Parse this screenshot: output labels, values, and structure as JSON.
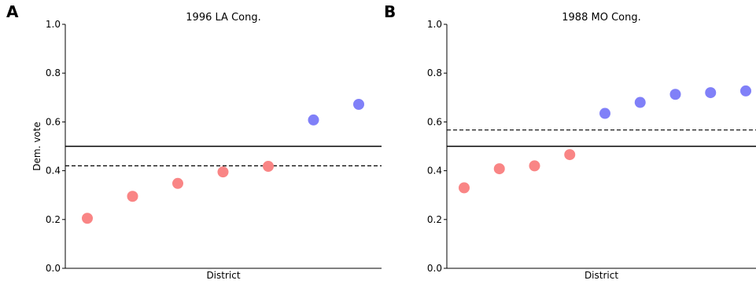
{
  "chart_data": [
    {
      "type": "scatter",
      "panel_label": "A",
      "title": "1996 LA Cong.",
      "xlabel": "District",
      "ylabel": "Dem. vote",
      "ylim": [
        0,
        1
      ],
      "yticks": [
        "0.0",
        "0.2",
        "0.4",
        "0.6",
        "0.8",
        "1.0"
      ],
      "points": [
        {
          "x": 1,
          "y": 0.205,
          "party": "rep"
        },
        {
          "x": 2,
          "y": 0.295,
          "party": "rep"
        },
        {
          "x": 3,
          "y": 0.348,
          "party": "rep"
        },
        {
          "x": 4,
          "y": 0.395,
          "party": "rep"
        },
        {
          "x": 5,
          "y": 0.418,
          "party": "rep"
        },
        {
          "x": 6,
          "y": 0.608,
          "party": "dem"
        },
        {
          "x": 7,
          "y": 0.672,
          "party": "dem"
        }
      ],
      "hlines": [
        {
          "y": 0.5,
          "style": "solid"
        },
        {
          "y": 0.42,
          "style": "dashed"
        }
      ],
      "grid": false
    },
    {
      "type": "scatter",
      "panel_label": "B",
      "title": "1988 MO Cong.",
      "xlabel": "District",
      "ylabel": "",
      "ylim": [
        0,
        1
      ],
      "yticks": [
        "0.0",
        "0.2",
        "0.4",
        "0.6",
        "0.8",
        "1.0"
      ],
      "points": [
        {
          "x": 1,
          "y": 0.33,
          "party": "rep"
        },
        {
          "x": 2,
          "y": 0.408,
          "party": "rep"
        },
        {
          "x": 3,
          "y": 0.42,
          "party": "rep"
        },
        {
          "x": 4,
          "y": 0.466,
          "party": "rep"
        },
        {
          "x": 5,
          "y": 0.635,
          "party": "dem"
        },
        {
          "x": 6,
          "y": 0.68,
          "party": "dem"
        },
        {
          "x": 7,
          "y": 0.713,
          "party": "dem"
        },
        {
          "x": 8,
          "y": 0.72,
          "party": "dem"
        },
        {
          "x": 9,
          "y": 0.727,
          "party": "dem"
        }
      ],
      "hlines": [
        {
          "y": 0.5,
          "style": "solid"
        },
        {
          "y": 0.567,
          "style": "dashed"
        }
      ],
      "grid": false
    }
  ],
  "colors": {
    "rep": "#f98585",
    "dem": "#8080f8",
    "axis": "#000000"
  }
}
